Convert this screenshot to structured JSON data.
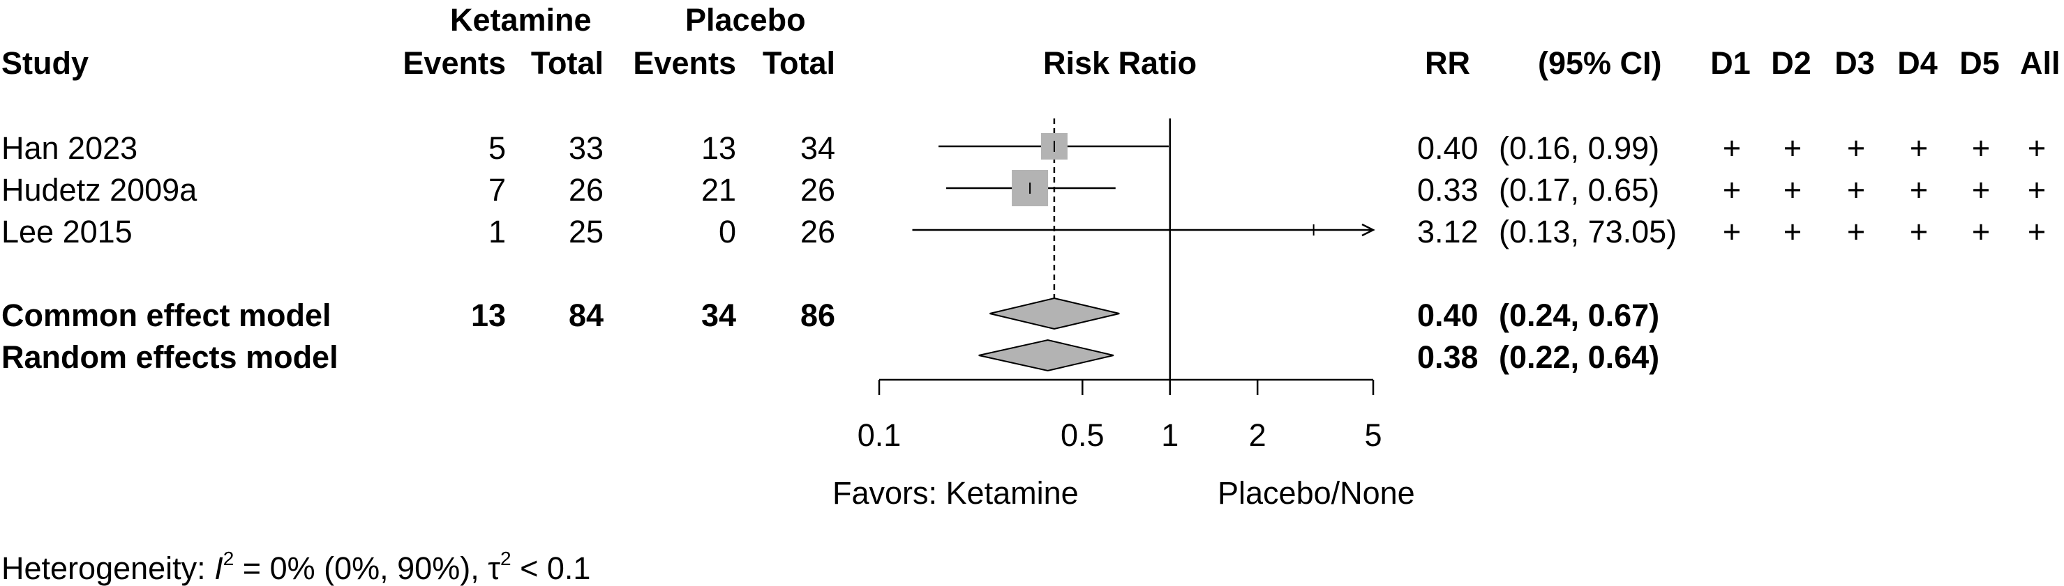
{
  "header": {
    "ketamine": "Ketamine",
    "placebo": "Placebo",
    "study": "Study",
    "events1": "Events",
    "total1": "Total",
    "events2": "Events",
    "total2": "Total",
    "risk_ratio": "Risk Ratio",
    "rr": "RR",
    "ci": "(95% CI)",
    "d1": "D1",
    "d2": "D2",
    "d3": "D3",
    "d4": "D4",
    "d5": "D5",
    "all": "All"
  },
  "studies": [
    {
      "name": "Han 2023",
      "ke": "5",
      "kt": "33",
      "pe": "13",
      "pt": "34",
      "rr": "0.40",
      "ci": "(0.16,  0.99)",
      "rob": [
        "+",
        "+",
        "+",
        "+",
        "+",
        "+"
      ]
    },
    {
      "name": "Hudetz 2009a",
      "ke": "7",
      "kt": "26",
      "pe": "21",
      "pt": "26",
      "rr": "0.33",
      "ci": "(0.17,  0.65)",
      "rob": [
        "+",
        "+",
        "+",
        "+",
        "+",
        "+"
      ]
    },
    {
      "name": "Lee 2015",
      "ke": "1",
      "kt": "25",
      "pe": "0",
      "pt": "26",
      "rr": "3.12",
      "ci": "(0.13, 73.05)",
      "rob": [
        "+",
        "+",
        "+",
        "+",
        "+",
        "+"
      ]
    }
  ],
  "common": {
    "name": "Common effect model",
    "ke": "13",
    "kt": "84",
    "pe": "34",
    "pt": "86",
    "rr": "0.40",
    "ci": "(0.24,  0.67)"
  },
  "random": {
    "name": "Random effects model",
    "rr": "0.38",
    "ci": "(0.22,  0.64)"
  },
  "favors_left": "Favors: Ketamine",
  "favors_right": "Placebo/None",
  "heterogeneity": {
    "prefix": "Heterogeneity: ",
    "i": "I",
    "i_sup": "2",
    "mid": " = 0% (0%, 90%), ",
    "tau": "τ",
    "tau_sup": "2",
    "suffix": " < 0.1"
  },
  "chart_data": {
    "type": "forest",
    "scale": "log",
    "xlim": [
      0.1,
      5
    ],
    "ticks": [
      0.1,
      0.5,
      1,
      2,
      5
    ],
    "tick_labels": [
      "0.1",
      "0.5",
      "1",
      "2",
      "5"
    ],
    "null_value": 1,
    "studies": [
      {
        "rr": 0.4,
        "lo": 0.16,
        "hi": 0.99,
        "weight_box": 38,
        "arrow_right": false
      },
      {
        "rr": 0.33,
        "lo": 0.17,
        "hi": 0.65,
        "weight_box": 52,
        "arrow_right": false
      },
      {
        "rr": 3.12,
        "lo": 0.13,
        "hi": 73.05,
        "weight_box": 0,
        "arrow_right": true
      }
    ],
    "common": {
      "rr": 0.4,
      "lo": 0.24,
      "hi": 0.67
    },
    "random": {
      "rr": 0.38,
      "lo": 0.22,
      "hi": 0.64
    },
    "colors": {
      "box": "#b3b3b3",
      "diamond": "#b3b3b3",
      "line": "#000000"
    }
  }
}
